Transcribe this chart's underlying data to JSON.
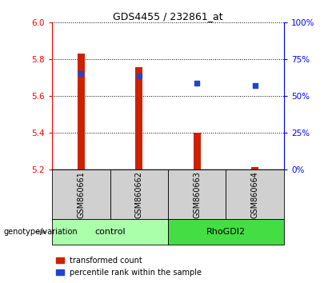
{
  "title": "GDS4455 / 232861_at",
  "samples": [
    "GSM860661",
    "GSM860662",
    "GSM860663",
    "GSM860664"
  ],
  "bar_bottom": 5.2,
  "bar_tops": [
    5.83,
    5.76,
    5.4,
    5.215
  ],
  "blue_y": [
    5.725,
    5.712,
    5.67,
    5.658
  ],
  "ylim_left": [
    5.2,
    6.0
  ],
  "ylim_right": [
    0,
    100
  ],
  "yticks_left": [
    5.2,
    5.4,
    5.6,
    5.8,
    6.0
  ],
  "yticks_right": [
    0,
    25,
    50,
    75,
    100
  ],
  "ytick_labels_right": [
    "0%",
    "25%",
    "50%",
    "75%",
    "100%"
  ],
  "groups": [
    {
      "label": "control",
      "samples": [
        0,
        1
      ],
      "color": "#aaffaa"
    },
    {
      "label": "RhoGDI2",
      "samples": [
        2,
        3
      ],
      "color": "#44dd44"
    }
  ],
  "group_label": "genotype/variation",
  "bar_color": "#cc2200",
  "blue_color": "#2244cc",
  "legend_red_label": "transformed count",
  "legend_blue_label": "percentile rank within the sample",
  "sample_bg": "#d0d0d0",
  "bar_width": 0.12
}
